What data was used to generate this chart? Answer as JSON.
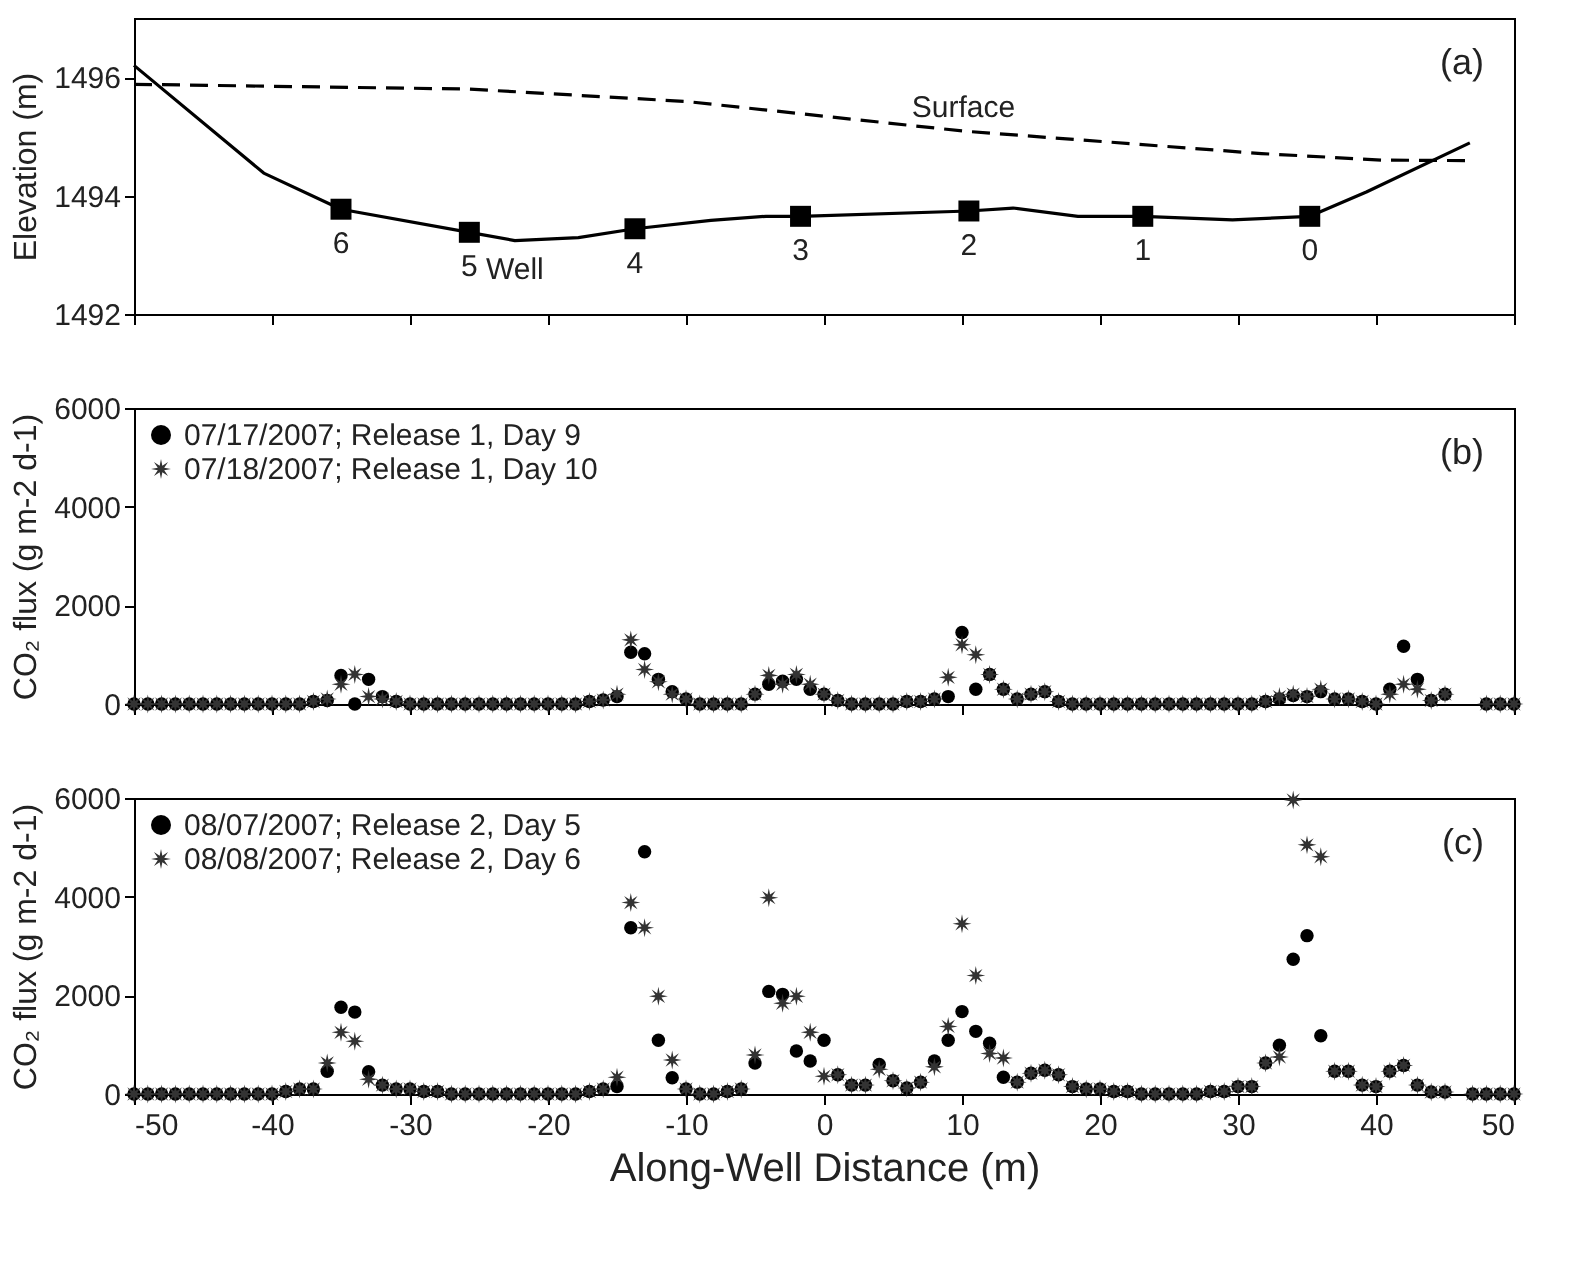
{
  "chart_data": [
    {
      "type": "line",
      "ylabel": "Elevation (m)",
      "xlim": [
        -50,
        50
      ],
      "xticks": [
        -50,
        -40,
        -30,
        -20,
        -10,
        0,
        10,
        20,
        30,
        40,
        50
      ],
      "ylim": [
        1492,
        1497
      ],
      "yticks": [
        1492,
        1494,
        1496
      ],
      "tick_labels": "y",
      "grid": false,
      "legend": false,
      "annotations": [
        "(a)",
        {
          "text": "6",
          "x": -35,
          "y": 1493.77
        },
        {
          "text": "5",
          "x": -25.7,
          "y": 1493.38
        },
        {
          "text": "4",
          "x": -13.7,
          "y": 1493.44
        },
        {
          "text": "3",
          "x": -1.7,
          "y": 1493.65
        },
        {
          "text": "2",
          "x": 10.5,
          "y": 1493.74
        },
        {
          "text": "1",
          "x": 23.1,
          "y": 1493.65
        },
        {
          "text": "0",
          "x": 35.2,
          "y": 1493.65
        }
      ],
      "series": [
        {
          "name": "Well",
          "line_style": "solid",
          "color": "#000000",
          "x": [
            -50,
            -40.6,
            -35,
            -25.7,
            -22.4,
            -17.8,
            -13.7,
            -8.2,
            -4.2,
            -1.7,
            10.5,
            13.7,
            18.4,
            23.1,
            29.6,
            35.2,
            39.3,
            46.8
          ],
          "values": [
            1496.2,
            1494.38,
            1493.77,
            1493.38,
            1493.24,
            1493.29,
            1493.44,
            1493.58,
            1493.65,
            1493.65,
            1493.74,
            1493.79,
            1493.65,
            1493.65,
            1493.59,
            1493.65,
            1494.06,
            1494.89
          ]
        },
        {
          "name": "Surface",
          "line_style": "dashed",
          "color": "#000000",
          "x": [
            -50,
            -25.8,
            -10,
            10.1,
            31.7,
            40.4,
            46.8
          ],
          "values": [
            1495.88,
            1495.8,
            1495.59,
            1495.09,
            1494.71,
            1494.6,
            1494.59
          ]
        },
        {
          "type": "scatter",
          "marker": "square",
          "color": "#000000",
          "x": [
            -35,
            -25.7,
            -13.7,
            -1.7,
            10.5,
            23.1,
            35.2
          ],
          "values": [
            1493.77,
            1493.38,
            1493.44,
            1493.65,
            1493.74,
            1493.65,
            1493.65
          ]
        }
      ]
    },
    {
      "type": "scatter",
      "ylabel": "CO₂ flux (g m-2 d-1)",
      "xlim": [
        -50,
        50
      ],
      "xticks": [
        -50,
        -40,
        -30,
        -20,
        -10,
        0,
        10,
        20,
        30,
        40,
        50
      ],
      "ylim": [
        0,
        6000
      ],
      "yticks": [
        0,
        2000,
        4000,
        6000
      ],
      "tick_labels": "y",
      "grid": false,
      "legend": "top left",
      "annotations": [
        "(b)"
      ],
      "x": [
        -50,
        -49,
        -48,
        -47,
        -46,
        -45,
        -44,
        -43,
        -42,
        -41,
        -40,
        -39,
        -38,
        -37,
        -36,
        -35,
        -34,
        -33,
        -32,
        -31,
        -30,
        -29,
        -28,
        -27,
        -26,
        -25,
        -24,
        -23,
        -22,
        -21,
        -20,
        -19,
        -18,
        -17,
        -16,
        -15,
        -14,
        -13,
        -12,
        -11,
        -10,
        -9,
        -8,
        -7,
        -6,
        -5,
        -4,
        -3,
        -2,
        -1,
        0,
        1,
        2,
        3,
        4,
        5,
        6,
        7,
        8,
        9,
        10,
        11,
        12,
        13,
        14,
        15,
        16,
        17,
        18,
        19,
        20,
        21,
        22,
        23,
        24,
        25,
        26,
        27,
        28,
        29,
        30,
        31,
        32,
        33,
        34,
        35,
        36,
        37,
        38,
        39,
        40,
        41,
        42,
        43,
        44,
        45,
        46,
        47,
        48,
        49,
        50
      ],
      "series": [
        {
          "name": "07/17/2007; Release 1, Day 9",
          "marker": "circle",
          "color": "#000000",
          "values": [
            0,
            0,
            0,
            0,
            0,
            0,
            0,
            0,
            0,
            0,
            0,
            0,
            0,
            50,
            70,
            580,
            0,
            500,
            150,
            50,
            0,
            0,
            0,
            0,
            0,
            0,
            0,
            0,
            0,
            0,
            0,
            0,
            0,
            50,
            80,
            150,
            1050,
            1020,
            500,
            250,
            100,
            0,
            0,
            0,
            0,
            200,
            400,
            460,
            500,
            300,
            200,
            70,
            0,
            0,
            0,
            0,
            50,
            50,
            100,
            150,
            1450,
            300,
            600,
            300,
            100,
            200,
            250,
            50,
            0,
            0,
            0,
            0,
            0,
            0,
            0,
            0,
            0,
            0,
            0,
            0,
            0,
            0,
            50,
            100,
            170,
            150,
            250,
            100,
            100,
            50,
            0,
            300,
            1170,
            500,
            70,
            200,
            null,
            null,
            0,
            0,
            0
          ]
        },
        {
          "name": "07/18/2007; Release 1, Day 10",
          "marker": "star",
          "color": "#333333",
          "values": [
            0,
            0,
            0,
            0,
            0,
            0,
            0,
            0,
            0,
            0,
            0,
            0,
            0,
            50,
            100,
            400,
            600,
            150,
            100,
            50,
            0,
            0,
            0,
            0,
            0,
            0,
            0,
            0,
            0,
            0,
            0,
            0,
            0,
            50,
            80,
            200,
            1300,
            700,
            450,
            200,
            100,
            0,
            0,
            0,
            0,
            200,
            580,
            400,
            600,
            400,
            200,
            70,
            0,
            0,
            0,
            0,
            50,
            50,
            100,
            540,
            1200,
            1000,
            600,
            300,
            100,
            200,
            250,
            50,
            0,
            0,
            0,
            0,
            0,
            0,
            0,
            0,
            0,
            0,
            0,
            0,
            0,
            0,
            50,
            150,
            200,
            150,
            300,
            100,
            100,
            50,
            0,
            200,
            400,
            300,
            70,
            200,
            null,
            null,
            0,
            0,
            0
          ]
        }
      ]
    },
    {
      "type": "scatter",
      "ylabel": "CO₂ flux (g m-2 d-1)",
      "xlabel": "Along-Well Distance (m)",
      "xlim": [
        -50,
        50
      ],
      "xticks": [
        -50,
        -40,
        -30,
        -20,
        -10,
        0,
        10,
        20,
        30,
        40,
        50
      ],
      "ylim": [
        0,
        6000
      ],
      "yticks": [
        0,
        2000,
        4000,
        6000
      ],
      "grid": false,
      "legend": "top left",
      "annotations": [
        "(c)"
      ],
      "x": [
        -50,
        -49,
        -48,
        -47,
        -46,
        -45,
        -44,
        -43,
        -42,
        -41,
        -40,
        -39,
        -38,
        -37,
        -36,
        -35,
        -34,
        -33,
        -32,
        -31,
        -30,
        -29,
        -28,
        -27,
        -26,
        -25,
        -24,
        -23,
        -22,
        -21,
        -20,
        -19,
        -18,
        -17,
        -16,
        -15,
        -14,
        -13,
        -12,
        -11,
        -10,
        -9,
        -8,
        -7,
        -6,
        -5,
        -4,
        -3,
        -2,
        -1,
        0,
        1,
        2,
        3,
        4,
        5,
        6,
        7,
        8,
        9,
        10,
        11,
        12,
        13,
        14,
        15,
        16,
        17,
        18,
        19,
        20,
        21,
        22,
        23,
        24,
        25,
        26,
        27,
        28,
        29,
        30,
        31,
        32,
        33,
        34,
        35,
        36,
        37,
        38,
        39,
        40,
        41,
        42,
        43,
        44,
        45,
        46,
        47,
        48,
        49,
        50
      ],
      "series": [
        {
          "name": "08/07/2007; Release 2, Day 5",
          "marker": "circle",
          "color": "#000000",
          "values": [
            0,
            0,
            0,
            0,
            0,
            0,
            0,
            0,
            0,
            0,
            0,
            50,
            100,
            100,
            460,
            1760,
            1660,
            450,
            180,
            100,
            100,
            50,
            50,
            0,
            0,
            0,
            0,
            0,
            0,
            0,
            0,
            0,
            0,
            50,
            100,
            150,
            3370,
            4910,
            1090,
            330,
            100,
            0,
            0,
            50,
            100,
            630,
            2080,
            2020,
            870,
            670,
            1090,
            390,
            180,
            180,
            600,
            270,
            120,
            240,
            670,
            1090,
            1670,
            1270,
            1030,
            340,
            240,
            420,
            480,
            390,
            150,
            100,
            100,
            50,
            50,
            0,
            0,
            0,
            0,
            0,
            50,
            50,
            150,
            150,
            630,
            990,
            2730,
            3210,
            1180,
            460,
            460,
            180,
            150,
            460,
            580,
            180,
            40,
            40,
            null,
            0,
            0,
            0,
            0
          ]
        },
        {
          "name": "08/08/2007; Release 2, Day 6",
          "marker": "star",
          "color": "#333333",
          "values": [
            0,
            0,
            0,
            0,
            0,
            0,
            0,
            0,
            0,
            0,
            0,
            50,
            100,
            100,
            630,
            1250,
            1070,
            300,
            180,
            100,
            100,
            50,
            50,
            0,
            0,
            0,
            0,
            0,
            0,
            0,
            0,
            0,
            0,
            50,
            100,
            340,
            3880,
            3370,
            1980,
            690,
            100,
            0,
            0,
            50,
            100,
            790,
            3980,
            1840,
            1980,
            1250,
            360,
            390,
            180,
            180,
            500,
            270,
            120,
            240,
            550,
            1370,
            3450,
            2400,
            820,
            730,
            240,
            420,
            480,
            390,
            150,
            100,
            100,
            50,
            50,
            0,
            0,
            0,
            0,
            0,
            50,
            50,
            150,
            150,
            630,
            750,
            5960,
            5050,
            4810,
            460,
            460,
            180,
            150,
            460,
            580,
            180,
            40,
            40,
            null,
            0,
            0,
            0,
            0
          ]
        }
      ]
    }
  ]
}
